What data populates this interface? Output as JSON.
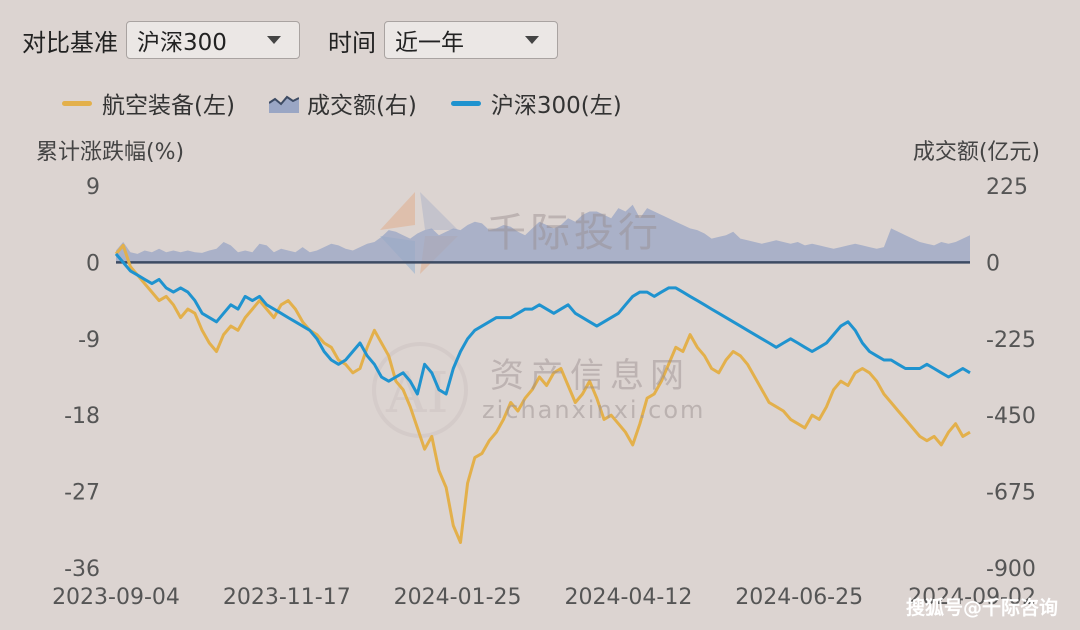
{
  "controls": {
    "benchmark_label": "对比基准",
    "benchmark_value": "沪深300",
    "period_label": "时间",
    "period_value": "近一年"
  },
  "watermarks": {
    "brand_cn": "千际投行",
    "site_cn": "资产信息网",
    "site_en": "zichanxinxi.com",
    "corner": "搜狐号@千际咨询"
  },
  "colors": {
    "aviation": "#e3b04b",
    "volume": "#9aa6c4",
    "hs300": "#1f93cf",
    "zero_line": "#3d4b63"
  },
  "chart_data": {
    "type": "line",
    "left_axis_title": "累计涨跌幅(%)",
    "right_axis_title": "成交额(亿元)",
    "left_ticks": [
      "9",
      "0",
      "-9",
      "-18",
      "-27",
      "-36"
    ],
    "left_values": [
      9,
      0,
      -9,
      -18,
      -27,
      -36
    ],
    "right_ticks": [
      "225",
      "0",
      "-225",
      "-450",
      "-675",
      "-900"
    ],
    "right_values": [
      225,
      0,
      -225,
      -450,
      -675,
      -900
    ],
    "ylim_left": [
      -36,
      9
    ],
    "ylim_right": [
      -900,
      225
    ],
    "x_ticks": [
      "2023-09-04",
      "2023-11-17",
      "2024-01-25",
      "2024-04-12",
      "2024-06-25",
      "2024-09-02"
    ],
    "legend": [
      {
        "name": "航空装备(左)",
        "kind": "line"
      },
      {
        "name": "成交额(右)",
        "kind": "area"
      },
      {
        "name": "沪深300(左)",
        "kind": "line"
      }
    ],
    "series": [
      {
        "name": "航空装备(左)",
        "axis": "left",
        "values": [
          1.0,
          2.0,
          -0.5,
          -1.5,
          -2.5,
          -3.5,
          -4.5,
          -4.0,
          -5.0,
          -6.5,
          -5.5,
          -6.0,
          -8.0,
          -9.5,
          -10.5,
          -8.5,
          -7.5,
          -8.0,
          -6.5,
          -5.5,
          -4.5,
          -5.5,
          -6.5,
          -5.0,
          -4.5,
          -5.5,
          -7.0,
          -8.0,
          -8.5,
          -9.5,
          -10.0,
          -11.5,
          -12.0,
          -13.0,
          -12.5,
          -10.0,
          -8.0,
          -9.5,
          -11.0,
          -14.0,
          -15.0,
          -17.0,
          -19.5,
          -22.0,
          -20.5,
          -24.5,
          -26.5,
          -31.0,
          -33.0,
          -26.0,
          -23.0,
          -22.5,
          -21.0,
          -20.0,
          -18.5,
          -16.5,
          -17.5,
          -16.0,
          -15.0,
          -13.5,
          -14.5,
          -13.0,
          -12.5,
          -14.5,
          -16.5,
          -15.5,
          -14.0,
          -16.0,
          -18.5,
          -18.0,
          -19.0,
          -20.0,
          -21.5,
          -19.0,
          -16.0,
          -15.5,
          -14.0,
          -12.0,
          -10.0,
          -10.5,
          -8.5,
          -10.0,
          -11.0,
          -12.5,
          -13.0,
          -11.5,
          -10.5,
          -11.0,
          -12.0,
          -13.5,
          -15.0,
          -16.5,
          -17.0,
          -17.5,
          -18.5,
          -19.0,
          -19.5,
          -18.0,
          -18.5,
          -17.0,
          -15.0,
          -14.0,
          -14.5,
          -13.0,
          -12.5,
          -13.0,
          -14.0,
          -15.5,
          -16.5,
          -17.5,
          -18.5,
          -19.5,
          -20.5,
          -21.0,
          -20.5,
          -21.5,
          -20.0,
          -19.0,
          -20.5,
          -20.0
        ]
      },
      {
        "name": "沪深300(左)",
        "axis": "left",
        "values": [
          1.0,
          0.0,
          -1.0,
          -1.5,
          -2.0,
          -2.5,
          -2.0,
          -3.0,
          -3.5,
          -3.0,
          -3.5,
          -4.5,
          -6.0,
          -6.5,
          -7.0,
          -6.0,
          -5.0,
          -5.5,
          -4.0,
          -4.5,
          -4.0,
          -5.0,
          -5.5,
          -6.0,
          -6.5,
          -7.0,
          -7.5,
          -8.0,
          -9.0,
          -10.5,
          -11.5,
          -12.0,
          -11.5,
          -10.5,
          -9.5,
          -11.0,
          -12.0,
          -13.5,
          -14.0,
          -13.5,
          -13.0,
          -14.0,
          -15.5,
          -12.0,
          -13.0,
          -15.0,
          -15.5,
          -12.5,
          -10.5,
          -9.0,
          -8.0,
          -7.5,
          -7.0,
          -6.5,
          -6.5,
          -6.5,
          -6.0,
          -5.5,
          -5.5,
          -5.0,
          -5.5,
          -6.0,
          -5.5,
          -5.0,
          -6.0,
          -6.5,
          -7.0,
          -7.5,
          -7.0,
          -6.5,
          -6.0,
          -5.0,
          -4.0,
          -3.5,
          -3.5,
          -4.0,
          -3.5,
          -3.0,
          -3.0,
          -3.5,
          -4.0,
          -4.5,
          -5.0,
          -5.5,
          -6.0,
          -6.5,
          -7.0,
          -7.5,
          -8.0,
          -8.5,
          -9.0,
          -9.5,
          -10.0,
          -9.5,
          -9.0,
          -9.5,
          -10.0,
          -10.5,
          -10.0,
          -9.5,
          -8.5,
          -7.5,
          -7.0,
          -8.0,
          -9.5,
          -10.5,
          -11.0,
          -11.5,
          -11.5,
          -12.0,
          -12.5,
          -12.5,
          -12.5,
          -12.0,
          -12.5,
          -13.0,
          -13.5,
          -13.0,
          -12.5,
          -13.0
        ]
      },
      {
        "name": "成交额(右)",
        "axis": "right",
        "type": "area",
        "values": [
          35,
          60,
          30,
          25,
          35,
          30,
          40,
          30,
          35,
          30,
          35,
          30,
          28,
          35,
          40,
          60,
          50,
          30,
          35,
          30,
          55,
          50,
          30,
          40,
          35,
          30,
          45,
          30,
          35,
          45,
          55,
          50,
          40,
          35,
          45,
          55,
          60,
          75,
          95,
          90,
          80,
          70,
          85,
          95,
          100,
          80,
          90,
          100,
          95,
          110,
          120,
          115,
          95,
          100,
          110,
          105,
          90,
          80,
          100,
          120,
          110,
          100,
          110,
          130,
          120,
          140,
          150,
          150,
          140,
          130,
          160,
          150,
          170,
          130,
          160,
          150,
          140,
          130,
          120,
          110,
          100,
          95,
          85,
          70,
          75,
          80,
          90,
          70,
          65,
          60,
          55,
          60,
          65,
          60,
          55,
          60,
          50,
          55,
          50,
          45,
          40,
          45,
          50,
          55,
          50,
          45,
          40,
          45,
          100,
          90,
          80,
          70,
          60,
          55,
          50,
          60,
          55,
          60,
          70,
          80
        ]
      }
    ]
  }
}
